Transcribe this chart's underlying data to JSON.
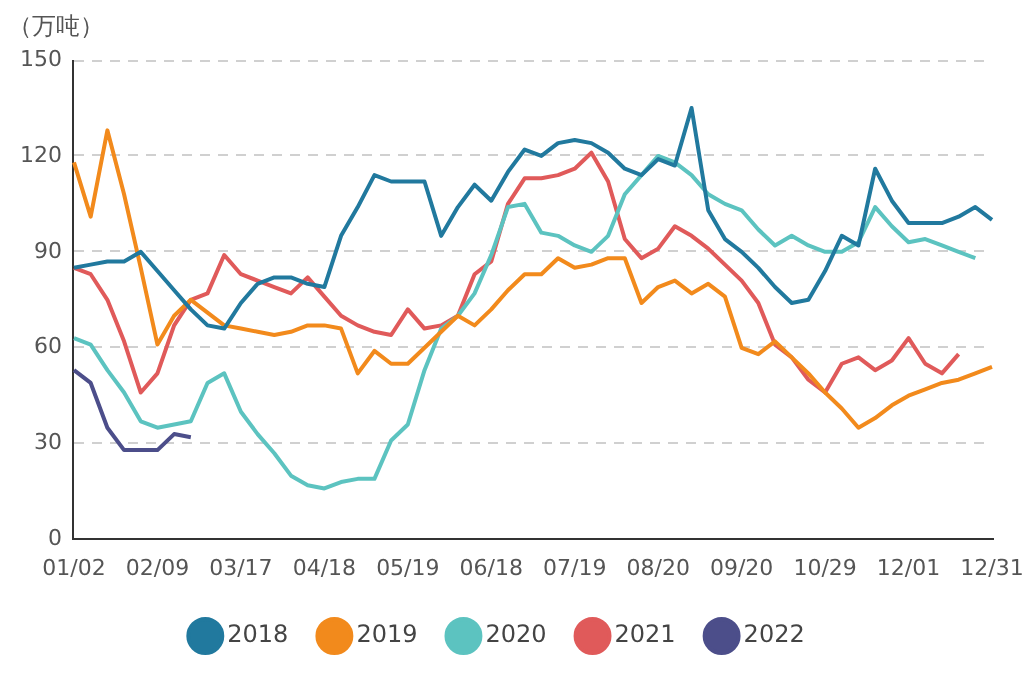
{
  "chart_data": {
    "type": "line",
    "ylabel": "（万吨）",
    "categories": [
      "01/02",
      null,
      null,
      null,
      null,
      "02/09",
      null,
      null,
      null,
      null,
      "03/17",
      null,
      null,
      null,
      null,
      "04/18",
      null,
      null,
      null,
      null,
      "05/19",
      null,
      null,
      null,
      null,
      "06/18",
      null,
      null,
      null,
      null,
      "07/19",
      null,
      null,
      null,
      null,
      "08/20",
      null,
      null,
      null,
      null,
      "09/20",
      null,
      null,
      null,
      null,
      "10/29",
      null,
      null,
      null,
      null,
      "12/01",
      null,
      null,
      null,
      null,
      "12/31"
    ],
    "ylim": [
      0,
      150
    ],
    "yticks": [
      0,
      30,
      60,
      90,
      120,
      150
    ],
    "grid": "y",
    "legend": "bottom",
    "marker": "none",
    "line_style": "solid",
    "series": [
      {
        "name": "2018",
        "color": "#21799e",
        "values": [
          85,
          86,
          87,
          87,
          90,
          84,
          78,
          72,
          67,
          66,
          74,
          80,
          82,
          82,
          80,
          79,
          95,
          104,
          114,
          112,
          112,
          112,
          95,
          104,
          111,
          106,
          115,
          122,
          120,
          124,
          125,
          124,
          121,
          116,
          114,
          119,
          117,
          135,
          103,
          94,
          90,
          85,
          79,
          74,
          75,
          84,
          95,
          92,
          116,
          106,
          99,
          99,
          99,
          101,
          104,
          100
        ]
      },
      {
        "name": "2019",
        "color": "#f28a1c",
        "values": [
          118,
          101,
          128,
          108,
          85,
          61,
          70,
          75,
          71,
          67,
          66,
          65,
          64,
          65,
          67,
          67,
          66,
          52,
          59,
          55,
          55,
          60,
          65,
          70,
          67,
          72,
          78,
          83,
          83,
          88,
          85,
          86,
          88,
          88,
          74,
          79,
          81,
          77,
          80,
          76,
          60,
          58,
          62,
          57,
          52,
          46,
          41,
          35,
          38,
          42,
          45,
          47,
          49,
          50,
          52,
          54
        ]
      },
      {
        "name": "2020",
        "color": "#5cc3c0",
        "values": [
          63,
          61,
          53,
          46,
          37,
          35,
          36,
          37,
          49,
          52,
          40,
          33,
          27,
          20,
          17,
          16,
          18,
          19,
          19,
          31,
          36,
          53,
          66,
          70,
          77,
          89,
          104,
          105,
          96,
          95,
          92,
          90,
          95,
          108,
          114,
          120,
          118,
          114,
          108,
          105,
          103,
          97,
          92,
          95,
          92,
          90,
          90,
          93,
          104,
          98,
          93,
          94,
          92,
          90,
          88,
          null
        ]
      },
      {
        "name": "2021",
        "color": "#e05a5a",
        "values": [
          85,
          83,
          75,
          62,
          46,
          52,
          67,
          75,
          77,
          89,
          83,
          81,
          79,
          77,
          82,
          76,
          70,
          67,
          65,
          64,
          72,
          66,
          67,
          70,
          83,
          87,
          105,
          113,
          113,
          114,
          116,
          121,
          112,
          94,
          88,
          91,
          98,
          95,
          91,
          86,
          81,
          74,
          61,
          57,
          50,
          46,
          55,
          57,
          53,
          56,
          63,
          55,
          52,
          58,
          null,
          null
        ]
      },
      {
        "name": "2022",
        "color": "#4c4e8a",
        "values": [
          53,
          49,
          35,
          28,
          28,
          28,
          33,
          32,
          null,
          null,
          null,
          null,
          null,
          null,
          null,
          null,
          null,
          null,
          null,
          null,
          null,
          null,
          null,
          null,
          null,
          null,
          null,
          null,
          null,
          null,
          null,
          null,
          null,
          null,
          null,
          null,
          null,
          null,
          null,
          null,
          null,
          null,
          null,
          null,
          null,
          null,
          null,
          null,
          null,
          null,
          null,
          null,
          null,
          null,
          null,
          null
        ]
      }
    ]
  }
}
